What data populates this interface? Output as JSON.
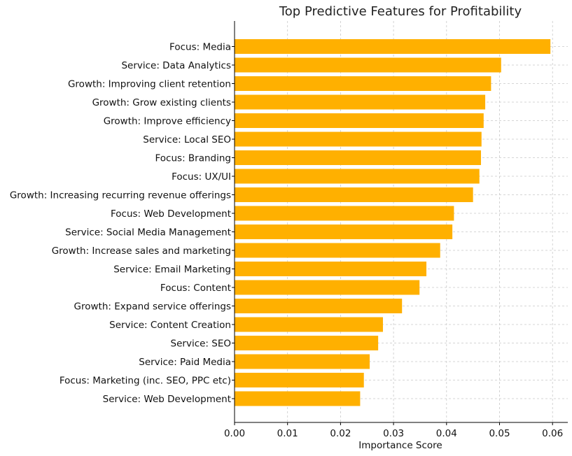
{
  "chart_data": {
    "type": "bar",
    "orientation": "horizontal",
    "title": "Top Predictive Features for Profitability",
    "xlabel": "Importance Score",
    "ylabel": "",
    "xlim": [
      0,
      0.0625
    ],
    "xticks": [
      "0.00",
      "0.01",
      "0.02",
      "0.03",
      "0.04",
      "0.05",
      "0.06"
    ],
    "grid": true,
    "bar_color": "#FFB000",
    "categories": [
      "Focus: Media",
      "Service: Data Analytics",
      "Growth: Improving client retention",
      "Growth: Grow existing clients",
      "Growth: Improve efficiency",
      "Service: Local SEO",
      "Focus: Branding",
      "Focus: UX/UI",
      "Growth: Increasing recurring revenue offerings",
      "Focus: Web Development",
      "Service: Social Media Management",
      "Growth: Increase sales and marketing",
      "Service: Email Marketing",
      "Focus: Content",
      "Growth: Expand service offerings",
      "Service: Content Creation",
      "Service: SEO",
      "Service: Paid Media",
      "Focus: Marketing (inc. SEO, PPC etc)",
      "Service: Web Development"
    ],
    "values": [
      0.0596,
      0.0503,
      0.0484,
      0.0473,
      0.047,
      0.0466,
      0.0465,
      0.0462,
      0.045,
      0.0414,
      0.0411,
      0.0388,
      0.0362,
      0.0349,
      0.0316,
      0.028,
      0.0271,
      0.0255,
      0.0244,
      0.0237
    ]
  }
}
